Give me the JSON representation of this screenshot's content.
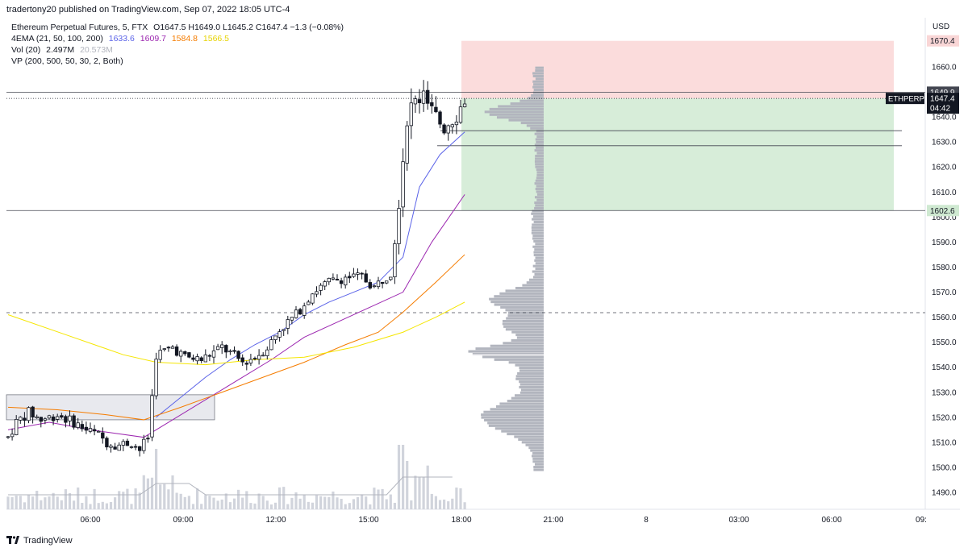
{
  "header": {
    "published_line": "tradertony20 published on TradingView.com, Sep 07, 2022 18:05 UTC-4"
  },
  "legend": {
    "symbol": "Ethereum Perpetual Futures, 5, FTX",
    "ohlc": "O1647.5  H1649.0  L1645.2  C1647.4  −1.3 (−0.08%)",
    "ema_label": "4EMA (21, 50, 100, 200)",
    "ema_values": [
      "1633.6",
      "1609.7",
      "1584.8",
      "1566.5"
    ],
    "vol_label": "Vol (20)",
    "vol_values": [
      "2.497M",
      "20.573M"
    ],
    "vp_label": "VP (200, 500, 50, 30, 2, Both)"
  },
  "footer": {
    "brand": "TradingView"
  },
  "colors": {
    "ema21": "#5b63e8",
    "ema50": "#9c27b0",
    "ema100": "#f57c00",
    "ema200": "#f5e600",
    "candle": "#131722",
    "profit_zone": "#d7edd9",
    "loss_zone": "#fbdcdc",
    "volume_profile": "#b2b5be"
  },
  "chart_data": {
    "type": "candlestick",
    "title": "Ethereum Perpetual Futures, 5, FTX",
    "currency": "USD",
    "y_ticks": [
      "1490.0",
      "1500.0",
      "1510.0",
      "1520.0",
      "1530.0",
      "1540.0",
      "1550.0",
      "1560.0",
      "1570.0",
      "1580.0",
      "1590.0",
      "1600.0",
      "1610.0",
      "1620.0",
      "1630.0",
      "1640.0",
      "1650.0",
      "1660.0"
    ],
    "ylim": [
      1483,
      1676
    ],
    "x_ticks": [
      "06:00",
      "09:00",
      "12:00",
      "15:00",
      "18:00",
      "21:00",
      "8",
      "03:00",
      "06:00",
      "09:"
    ],
    "price_badges": {
      "take_profit": "1670.4",
      "resistance": "1649.9",
      "last": "1647.4",
      "symbol_tag": "ETHPERP",
      "countdown": "04:42",
      "stop": "1602.6"
    },
    "horizontal_levels": [
      1649.9,
      1634.5,
      1628.5,
      1602.6
    ],
    "dashed_level": 1561.8,
    "last_price": 1647.4,
    "position": {
      "entry": 1647.4,
      "target": 1670.4,
      "stop": 1602.6
    },
    "series": [
      {
        "name": "Price",
        "points": [
          [
            0,
            1512
          ],
          [
            2,
            1518
          ],
          [
            5,
            1522
          ],
          [
            8,
            1519
          ],
          [
            12,
            1521
          ],
          [
            16,
            1518
          ],
          [
            19,
            1515
          ],
          [
            22,
            1513
          ],
          [
            24,
            1510
          ],
          [
            27,
            1509
          ],
          [
            30,
            1510
          ],
          [
            32,
            1507
          ],
          [
            34,
            1512
          ],
          [
            36,
            1545
          ],
          [
            40,
            1548
          ],
          [
            43,
            1544
          ],
          [
            47,
            1543
          ],
          [
            52,
            1548
          ],
          [
            57,
            1542
          ],
          [
            60,
            1544
          ],
          [
            63,
            1548
          ],
          [
            66,
            1555
          ],
          [
            70,
            1561
          ],
          [
            74,
            1570
          ],
          [
            78,
            1574
          ],
          [
            82,
            1576
          ],
          [
            86,
            1576
          ],
          [
            89,
            1572
          ],
          [
            93,
            1578
          ],
          [
            95,
            1608
          ],
          [
            97,
            1640
          ],
          [
            99,
            1646
          ],
          [
            101,
            1648
          ],
          [
            103,
            1642
          ],
          [
            106,
            1636
          ],
          [
            109,
            1641
          ],
          [
            111,
            1647
          ]
        ]
      },
      {
        "name": "EMA 21",
        "points": [
          [
            36,
            1520
          ],
          [
            42,
            1528
          ],
          [
            48,
            1536
          ],
          [
            54,
            1543
          ],
          [
            60,
            1549
          ],
          [
            66,
            1554
          ],
          [
            72,
            1561
          ],
          [
            78,
            1566
          ],
          [
            84,
            1570
          ],
          [
            90,
            1574
          ],
          [
            96,
            1584
          ],
          [
            100,
            1612
          ],
          [
            105,
            1625
          ],
          [
            111,
            1634
          ]
        ]
      },
      {
        "name": "EMA 50",
        "points": [
          [
            0,
            1515
          ],
          [
            10,
            1518
          ],
          [
            20,
            1515
          ],
          [
            33,
            1512
          ],
          [
            40,
            1519
          ],
          [
            48,
            1527
          ],
          [
            56,
            1535
          ],
          [
            64,
            1543
          ],
          [
            72,
            1552
          ],
          [
            80,
            1558
          ],
          [
            88,
            1564
          ],
          [
            96,
            1570
          ],
          [
            103,
            1590
          ],
          [
            111,
            1609
          ]
        ]
      },
      {
        "name": "EMA 100",
        "points": [
          [
            0,
            1524
          ],
          [
            12,
            1523
          ],
          [
            24,
            1521
          ],
          [
            33,
            1519
          ],
          [
            42,
            1524
          ],
          [
            52,
            1530
          ],
          [
            62,
            1536
          ],
          [
            72,
            1542
          ],
          [
            82,
            1549
          ],
          [
            90,
            1554
          ],
          [
            96,
            1562
          ],
          [
            104,
            1574
          ],
          [
            111,
            1585
          ]
        ]
      },
      {
        "name": "EMA 200",
        "points": [
          [
            0,
            1561
          ],
          [
            14,
            1553
          ],
          [
            28,
            1545
          ],
          [
            36,
            1542
          ],
          [
            48,
            1541
          ],
          [
            60,
            1543
          ],
          [
            72,
            1544
          ],
          [
            84,
            1548
          ],
          [
            96,
            1554
          ],
          [
            104,
            1560
          ],
          [
            111,
            1566
          ]
        ]
      }
    ]
  }
}
